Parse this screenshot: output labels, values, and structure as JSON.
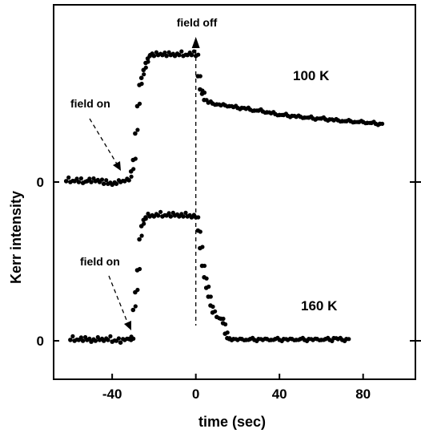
{
  "chart_data": {
    "type": "scatter",
    "xlabel": "time (sec)",
    "ylabel": "Kerr intensity",
    "xlim": [
      -68,
      105
    ],
    "x_ticks": [
      -40,
      0,
      40,
      80
    ],
    "x_tick_labels": [
      "-40",
      "0",
      "40",
      "80"
    ],
    "y_tick_labels": [
      "0",
      "0"
    ],
    "grid": false,
    "marker_color": "#000000",
    "series": [
      {
        "name": "100 K",
        "baseline_label": "0",
        "points": [
          [
            -62,
            0.01
          ],
          [
            -60,
            0.0
          ],
          [
            -58,
            0.01
          ],
          [
            -56,
            0.0
          ],
          [
            -54,
            -0.01
          ],
          [
            -52,
            0.01
          ],
          [
            -50,
            0.0
          ],
          [
            -48,
            0.01
          ],
          [
            -46,
            0.0
          ],
          [
            -44,
            -0.02
          ],
          [
            -42,
            -0.02
          ],
          [
            -40,
            -0.03
          ],
          [
            -38,
            -0.02
          ],
          [
            -36,
            0.0
          ],
          [
            -34,
            0.01
          ],
          [
            -32,
            0.02
          ],
          [
            -31,
            0.12
          ],
          [
            -30,
            0.25
          ],
          [
            -29,
            0.55
          ],
          [
            -28,
            0.86
          ],
          [
            -27,
            1.1
          ],
          [
            -26,
            1.18
          ],
          [
            -25,
            1.27
          ],
          [
            -24,
            1.35
          ],
          [
            -23,
            1.4
          ],
          [
            -22,
            1.43
          ],
          [
            -20,
            1.43
          ],
          [
            -18,
            1.44
          ],
          [
            -16,
            1.44
          ],
          [
            -14,
            1.43
          ],
          [
            -12,
            1.44
          ],
          [
            -10,
            1.43
          ],
          [
            -8,
            1.44
          ],
          [
            -6,
            1.43
          ],
          [
            -4,
            1.44
          ],
          [
            -2,
            1.44
          ],
          [
            0,
            1.43
          ],
          [
            1,
            1.2
          ],
          [
            2,
            1.05
          ],
          [
            3,
            1.0
          ],
          [
            4,
            0.93
          ],
          [
            6,
            0.9
          ],
          [
            8,
            0.89
          ],
          [
            10,
            0.88
          ],
          [
            12,
            0.87
          ],
          [
            14,
            0.87
          ],
          [
            16,
            0.86
          ],
          [
            18,
            0.85
          ],
          [
            20,
            0.84
          ],
          [
            22,
            0.84
          ],
          [
            24,
            0.83
          ],
          [
            26,
            0.82
          ],
          [
            28,
            0.81
          ],
          [
            30,
            0.81
          ],
          [
            32,
            0.8
          ],
          [
            34,
            0.79
          ],
          [
            36,
            0.78
          ],
          [
            38,
            0.77
          ],
          [
            40,
            0.76
          ],
          [
            42,
            0.76
          ],
          [
            44,
            0.75
          ],
          [
            46,
            0.75
          ],
          [
            48,
            0.74
          ],
          [
            50,
            0.74
          ],
          [
            52,
            0.73
          ],
          [
            54,
            0.73
          ],
          [
            56,
            0.72
          ],
          [
            58,
            0.72
          ],
          [
            60,
            0.72
          ],
          [
            62,
            0.71
          ],
          [
            64,
            0.71
          ],
          [
            66,
            0.7
          ],
          [
            68,
            0.7
          ],
          [
            70,
            0.69
          ],
          [
            72,
            0.69
          ],
          [
            74,
            0.69
          ],
          [
            76,
            0.68
          ],
          [
            78,
            0.68
          ],
          [
            80,
            0.68
          ],
          [
            82,
            0.67
          ],
          [
            84,
            0.67
          ],
          [
            86,
            0.66
          ],
          [
            88,
            0.66
          ]
        ]
      },
      {
        "name": "160 K",
        "baseline_label": "0",
        "points": [
          [
            -60,
            0.01
          ],
          [
            -58,
            0.0
          ],
          [
            -56,
            0.01
          ],
          [
            -54,
            0.0
          ],
          [
            -52,
            0.01
          ],
          [
            -50,
            -0.01
          ],
          [
            -48,
            0.0
          ],
          [
            -46,
            0.01
          ],
          [
            -44,
            0.0
          ],
          [
            -42,
            0.01
          ],
          [
            -40,
            -0.01
          ],
          [
            -38,
            0.0
          ],
          [
            -36,
            -0.02
          ],
          [
            -34,
            0.01
          ],
          [
            -32,
            0.02
          ],
          [
            -31,
            0.01
          ],
          [
            -30,
            0.35
          ],
          [
            -29,
            0.55
          ],
          [
            -28,
            0.8
          ],
          [
            -27,
            1.15
          ],
          [
            -26,
            1.3
          ],
          [
            -25,
            1.37
          ],
          [
            -24,
            1.4
          ],
          [
            -22,
            1.41
          ],
          [
            -20,
            1.41
          ],
          [
            -18,
            1.42
          ],
          [
            -16,
            1.41
          ],
          [
            -14,
            1.42
          ],
          [
            -12,
            1.41
          ],
          [
            -10,
            1.42
          ],
          [
            -8,
            1.41
          ],
          [
            -6,
            1.41
          ],
          [
            -4,
            1.41
          ],
          [
            -2,
            1.4
          ],
          [
            0,
            1.4
          ],
          [
            1,
            1.25
          ],
          [
            2,
            1.05
          ],
          [
            3,
            0.85
          ],
          [
            4,
            0.72
          ],
          [
            5,
            0.6
          ],
          [
            6,
            0.5
          ],
          [
            7,
            0.4
          ],
          [
            8,
            0.32
          ],
          [
            10,
            0.27
          ],
          [
            12,
            0.25
          ],
          [
            13,
            0.2
          ],
          [
            14,
            0.08
          ],
          [
            15,
            0.03
          ],
          [
            16,
            0.02
          ],
          [
            18,
            0.02
          ],
          [
            20,
            0.01
          ],
          [
            22,
            0.02
          ],
          [
            24,
            0.01
          ],
          [
            26,
            0.02
          ],
          [
            28,
            0.01
          ],
          [
            30,
            0.02
          ],
          [
            32,
            0.01
          ],
          [
            34,
            0.02
          ],
          [
            36,
            0.01
          ],
          [
            38,
            0.02
          ],
          [
            40,
            0.01
          ],
          [
            42,
            0.02
          ],
          [
            44,
            0.01
          ],
          [
            46,
            0.02
          ],
          [
            48,
            0.01
          ],
          [
            50,
            0.02
          ],
          [
            52,
            0.01
          ],
          [
            54,
            0.02
          ],
          [
            56,
            0.01
          ],
          [
            58,
            0.02
          ],
          [
            60,
            0.01
          ],
          [
            62,
            0.02
          ],
          [
            64,
            0.01
          ],
          [
            66,
            0.03
          ],
          [
            68,
            0.02
          ],
          [
            70,
            0.01
          ],
          [
            72,
            0.02
          ]
        ]
      }
    ],
    "annotations": [
      {
        "id": "field-off",
        "text": "field off",
        "x": 0
      },
      {
        "id": "field-on-100",
        "text": "field on",
        "series": "100 K",
        "x": -35
      },
      {
        "id": "field-on-160",
        "text": "field on",
        "series": "160 K",
        "x": -35
      }
    ]
  }
}
